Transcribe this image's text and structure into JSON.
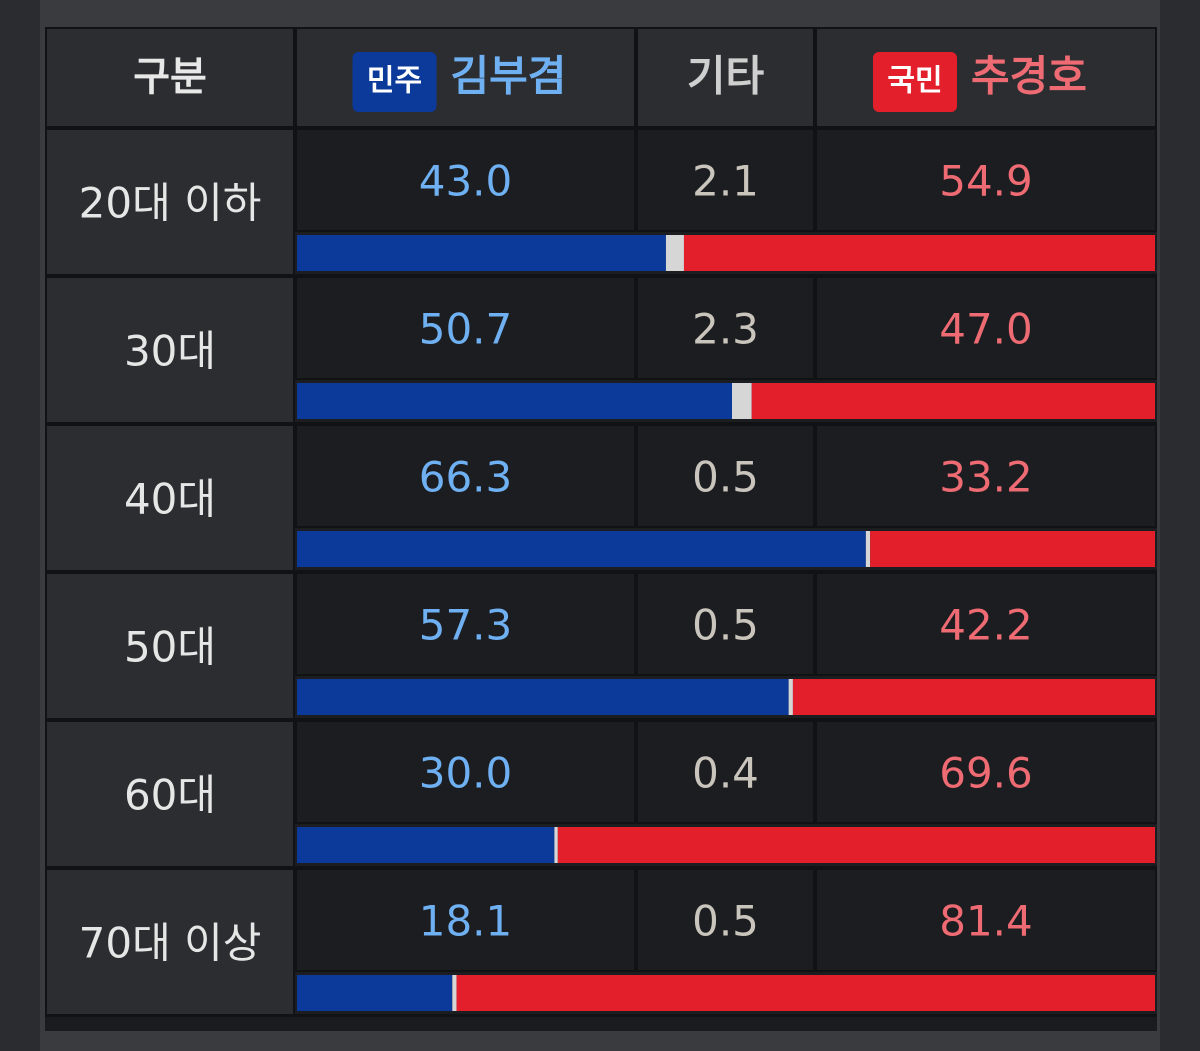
{
  "chart_data": {
    "type": "bar",
    "orientation": "horizontal",
    "stacked": true,
    "corner_label": "구분",
    "categories": [
      "20대 이하",
      "30대",
      "40대",
      "50대",
      "60대",
      "70대 이상"
    ],
    "series": [
      {
        "name": "김부겸",
        "party": "민주",
        "color": "#0b3a9a",
        "text_color": "#6fb0f2",
        "badge_color": "#0b3a9a",
        "values": [
          43.0,
          50.7,
          66.3,
          57.3,
          30.0,
          18.1
        ],
        "value_labels": [
          "43.0",
          "50.7",
          "66.3",
          "57.3",
          "30.0",
          "18.1"
        ]
      },
      {
        "name": "기타",
        "color": "#d6d6d6",
        "text_color": "#c9c5bd",
        "values": [
          2.1,
          2.3,
          0.5,
          0.5,
          0.4,
          0.5
        ],
        "value_labels": [
          "2.1",
          "2.3",
          "0.5",
          "0.5",
          "0.4",
          "0.5"
        ]
      },
      {
        "name": "추경호",
        "party": "국민",
        "color": "#e31f2b",
        "text_color": "#ee6b73",
        "badge_color": "#e31f2b",
        "values": [
          54.9,
          47.0,
          33.2,
          42.2,
          69.6,
          81.4
        ],
        "value_labels": [
          "54.9",
          "47.0",
          "33.2",
          "42.2",
          "69.6",
          "81.4"
        ]
      }
    ],
    "xlim": [
      0,
      100
    ]
  }
}
